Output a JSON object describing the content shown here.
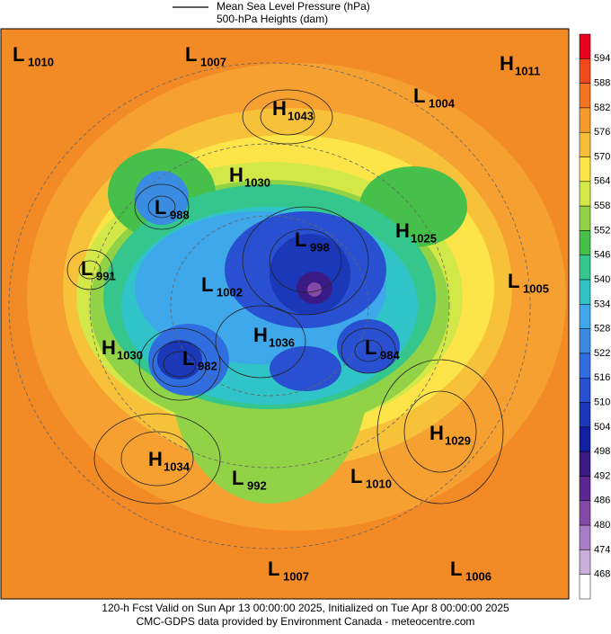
{
  "legend": {
    "line_label": "Mean Sea Level Pressure (hPa)",
    "fill_label": "500-hPa Heights (dam)"
  },
  "colorbar": {
    "labels": [
      594,
      588,
      582,
      576,
      570,
      564,
      558,
      552,
      546,
      540,
      534,
      528,
      522,
      516,
      510,
      504,
      498,
      492,
      486,
      480,
      474,
      468
    ],
    "colors": [
      "#e8001c",
      "#f04a1c",
      "#f27420",
      "#f59a2c",
      "#f7bd38",
      "#fde448",
      "#d2e848",
      "#92d246",
      "#46c04a",
      "#34c68c",
      "#30c4c8",
      "#3ea8ea",
      "#3a8ce2",
      "#306ee0",
      "#2850d0",
      "#1a38b8",
      "#1020a0",
      "#3a1a84",
      "#5e2692",
      "#8448a6",
      "#a87cc6",
      "#cbaedc",
      "#ffffff"
    ]
  },
  "centers": [
    {
      "letter": "L",
      "value": 1010
    },
    {
      "letter": "L",
      "value": 1007
    },
    {
      "letter": "H",
      "value": 1043
    },
    {
      "letter": "L",
      "value": 1004
    },
    {
      "letter": "H",
      "value": 1011
    },
    {
      "letter": "H",
      "value": 1030
    },
    {
      "letter": "L",
      "value": 988
    },
    {
      "letter": "L",
      "value": 998
    },
    {
      "letter": "H",
      "value": 1025
    },
    {
      "letter": "L",
      "value": 991
    },
    {
      "letter": "L",
      "value": 1002
    },
    {
      "letter": "L",
      "value": 1005
    },
    {
      "letter": "H",
      "value": 1036
    },
    {
      "letter": "H",
      "value": 1030
    },
    {
      "letter": "L",
      "value": 982
    },
    {
      "letter": "L",
      "value": 984
    },
    {
      "letter": "H",
      "value": 1029
    },
    {
      "letter": "H",
      "value": 1034
    },
    {
      "letter": "L",
      "value": 992
    },
    {
      "letter": "L",
      "value": 1010
    },
    {
      "letter": "L",
      "value": 1007
    },
    {
      "letter": "L",
      "value": 1006
    }
  ],
  "footer": {
    "line1": "120-h Fcst Valid on Sun Apr 13 00:00:00 2025, Initialized on Tue Apr  8 00:00:00 2025",
    "line2": "CMC-GDPS data provided by Environment Canada - meteocentre.com"
  }
}
